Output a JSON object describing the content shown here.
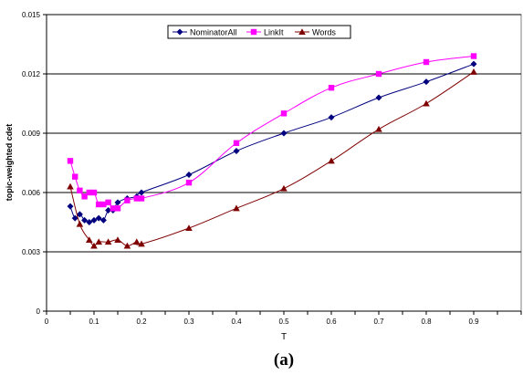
{
  "chart_data": {
    "type": "line",
    "title": "",
    "xlabel": "T",
    "ylabel": "topic-weighted cdet",
    "caption": "(a)",
    "xlim": [
      0,
      1
    ],
    "ylim": [
      0,
      0.015
    ],
    "x_ticks": [
      "0",
      "0.1",
      "0.2",
      "0.3",
      "0.4",
      "0.5",
      "0.6",
      "0.7",
      "0.8",
      "0.9"
    ],
    "x_tick_values": [
      0,
      0.1,
      0.2,
      0.3,
      0.4,
      0.5,
      0.6,
      0.7,
      0.8,
      0.9
    ],
    "y_ticks": [
      "0",
      "0.003",
      "0.006",
      "0.009",
      "0.012",
      "0.015"
    ],
    "y_tick_values": [
      0,
      0.003,
      0.006,
      0.009,
      0.012,
      0.015
    ],
    "grid": "horizontal",
    "legend": "top-center",
    "series": [
      {
        "name": "NominatorAll",
        "color": "#00007f",
        "marker": "diamond",
        "x": [
          0.05,
          0.06,
          0.07,
          0.08,
          0.09,
          0.1,
          0.11,
          0.12,
          0.13,
          0.14,
          0.15,
          0.17,
          0.19,
          0.2,
          0.3,
          0.4,
          0.5,
          0.6,
          0.7,
          0.8,
          0.9
        ],
        "y": [
          0.0053,
          0.0047,
          0.0049,
          0.0046,
          0.0045,
          0.0046,
          0.0047,
          0.0046,
          0.0051,
          0.0051,
          0.0055,
          0.0057,
          0.0058,
          0.006,
          0.0069,
          0.0081,
          0.009,
          0.0098,
          0.0108,
          0.0116,
          0.0125
        ]
      },
      {
        "name": "LinkIt",
        "color": "#ff00ff",
        "marker": "square",
        "x": [
          0.05,
          0.06,
          0.07,
          0.08,
          0.09,
          0.1,
          0.11,
          0.12,
          0.13,
          0.14,
          0.15,
          0.17,
          0.19,
          0.2,
          0.3,
          0.4,
          0.5,
          0.6,
          0.7,
          0.8,
          0.9
        ],
        "y": [
          0.0076,
          0.0068,
          0.0061,
          0.0058,
          0.006,
          0.006,
          0.0054,
          0.0054,
          0.0055,
          0.0052,
          0.0052,
          0.0056,
          0.0057,
          0.0057,
          0.0065,
          0.0085,
          0.01,
          0.0113,
          0.012,
          0.0126,
          0.0129
        ]
      },
      {
        "name": "Words",
        "color": "#7f0000",
        "marker": "triangle",
        "x": [
          0.05,
          0.07,
          0.09,
          0.1,
          0.11,
          0.13,
          0.15,
          0.17,
          0.19,
          0.2,
          0.3,
          0.4,
          0.5,
          0.6,
          0.7,
          0.8,
          0.9
        ],
        "y": [
          0.0063,
          0.0044,
          0.0036,
          0.0033,
          0.0035,
          0.0035,
          0.0036,
          0.0033,
          0.0035,
          0.0034,
          0.0042,
          0.0052,
          0.0062,
          0.0076,
          0.0092,
          0.0105,
          0.0121
        ]
      }
    ]
  }
}
